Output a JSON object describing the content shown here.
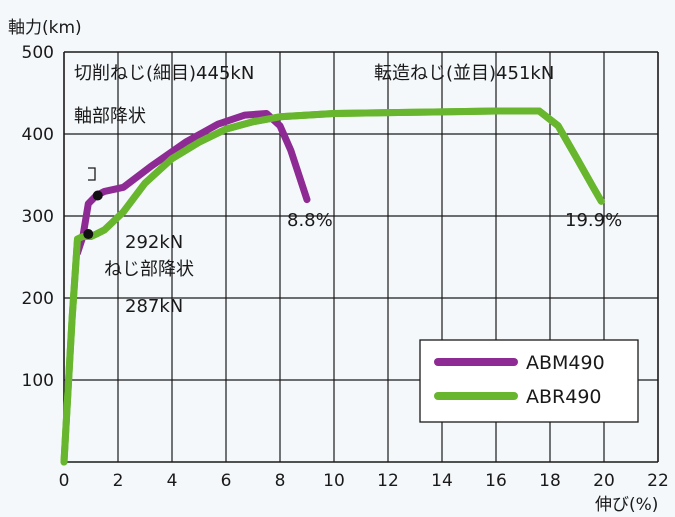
{
  "chart_data": {
    "type": "line",
    "title": "",
    "ylabel": "軸力(km)",
    "xlabel": "伸び(%)",
    "xlim": [
      0,
      22
    ],
    "ylim": [
      0,
      500
    ],
    "x_ticks": [
      "0",
      "2",
      "4",
      "6",
      "8",
      "10",
      "12",
      "14",
      "16",
      "18",
      "20",
      "22"
    ],
    "y_ticks": [
      "100",
      "200",
      "300",
      "400",
      "500"
    ],
    "grid": true,
    "legend_position": "bottom-right",
    "series": [
      {
        "name": "ABM490",
        "color": "#8e2a93",
        "x": [
          0.5,
          0.7,
          0.9,
          1.2,
          1.5,
          2.2,
          3.2,
          4.5,
          5.7,
          6.7,
          7.5,
          8.0,
          8.4,
          8.7,
          9.0
        ],
        "y": [
          255,
          275,
          315,
          325,
          330,
          335,
          360,
          390,
          412,
          423,
          425,
          410,
          380,
          350,
          320
        ]
      },
      {
        "name": "ABR490",
        "color": "#67b62d",
        "x": [
          0,
          0.3,
          0.5,
          0.7,
          1.0,
          1.2,
          1.5,
          2.2,
          3.0,
          4.0,
          5.0,
          6.0,
          7.0,
          8.0,
          10.0,
          14.0,
          16.0,
          17.6,
          18.3,
          19.0,
          19.6,
          19.9
        ],
        "y": [
          0,
          175,
          272,
          275,
          275,
          278,
          283,
          305,
          340,
          370,
          390,
          406,
          415,
          421,
          425,
          427,
          428,
          428,
          410,
          370,
          335,
          318
        ]
      }
    ],
    "annotations": {
      "cut_thread": "切削ねじ(細目)445kN",
      "rolled_thread": "転造ねじ(並目)451kN",
      "shaft_yield": "軸部降状",
      "v292": "292kN",
      "thread_yield": "ねじ部降状",
      "v287": "287kN",
      "elong_abm": "8.8%",
      "elong_abr": "19.9%"
    },
    "yield_points": [
      {
        "x": 1.25,
        "y": 325
      },
      {
        "x": 0.9,
        "y": 278
      }
    ]
  }
}
